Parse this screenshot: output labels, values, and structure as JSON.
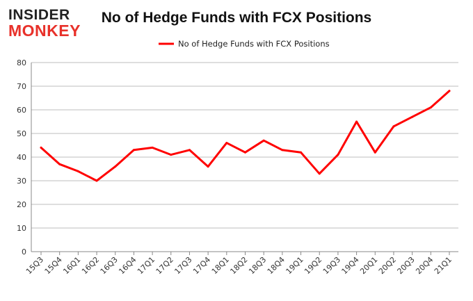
{
  "logo": {
    "line1": "INSIDER",
    "line2": "MONKEY"
  },
  "chart_data": {
    "type": "line",
    "title": "No of Hedge Funds with FCX Positions",
    "categories": [
      "15Q3",
      "15Q4",
      "16Q1",
      "16Q2",
      "16Q3",
      "16Q4",
      "17Q1",
      "17Q2",
      "17Q3",
      "17Q4",
      "18Q1",
      "18Q2",
      "18Q3",
      "18Q4",
      "19Q1",
      "19Q2",
      "19Q3",
      "19Q4",
      "20Q1",
      "20Q2",
      "20Q3",
      "20Q4",
      "21Q1"
    ],
    "series": [
      {
        "name": "No of Hedge Funds with FCX Positions",
        "color": "#ff0000",
        "values": [
          44,
          37,
          34,
          30,
          36,
          43,
          44,
          41,
          43,
          36,
          46,
          42,
          47,
          43,
          42,
          33,
          41,
          55,
          42,
          53,
          57,
          61,
          68
        ]
      }
    ],
    "ylim": [
      0,
      80
    ],
    "yticks": [
      0,
      10,
      20,
      30,
      40,
      50,
      60,
      70,
      80
    ],
    "grid": true,
    "legend": "top-center",
    "xlabel": "",
    "ylabel": ""
  }
}
